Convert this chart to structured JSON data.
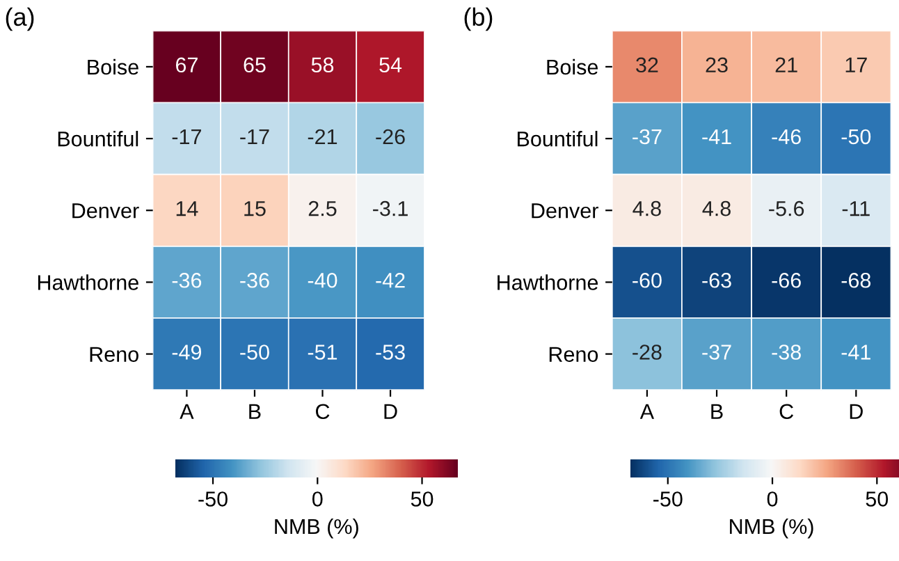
{
  "chart_data": [
    {
      "type": "heatmap",
      "title": "(a)",
      "clabel": "NMB (%)",
      "categories": [
        "A",
        "B",
        "C",
        "D"
      ],
      "y_categories": [
        "Boise",
        "Bountiful",
        "Denver",
        "Hawthorne",
        "Reno"
      ],
      "cells": [
        [
          67,
          65,
          58,
          54
        ],
        [
          -17,
          -17,
          -21,
          -26
        ],
        [
          14,
          15,
          2.5,
          -3.1
        ],
        [
          -36,
          -36,
          -40,
          -42
        ],
        [
          -49,
          -50,
          -51,
          -53
        ]
      ],
      "data_labels": true,
      "clim": [
        -68,
        67
      ],
      "cticks": [
        -50,
        0,
        50
      ]
    },
    {
      "type": "heatmap",
      "title": "(b)",
      "clabel": "NMB (%)",
      "categories": [
        "A",
        "B",
        "C",
        "D"
      ],
      "y_categories": [
        "Boise",
        "Bountiful",
        "Denver",
        "Hawthorne",
        "Reno"
      ],
      "cells": [
        [
          32,
          23,
          21,
          17
        ],
        [
          -37,
          -41,
          -46,
          -50
        ],
        [
          4.8,
          4.8,
          -5.6,
          -11
        ],
        [
          -60,
          -63,
          -66,
          -68
        ],
        [
          -28,
          -37,
          -38,
          -41
        ]
      ],
      "data_labels": true,
      "clim": [
        -68,
        67
      ],
      "cticks": [
        -50,
        0,
        50
      ]
    }
  ]
}
